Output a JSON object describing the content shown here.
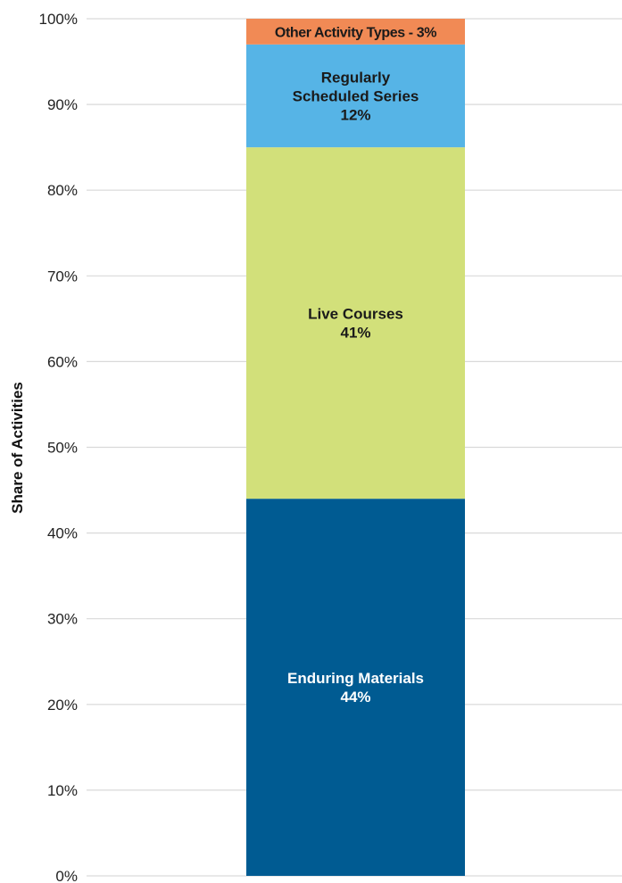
{
  "chart_data": {
    "type": "bar",
    "stacked": true,
    "ylabel": "Share of Activities",
    "ylim": [
      0,
      100
    ],
    "yticks": [
      0,
      10,
      20,
      30,
      40,
      50,
      60,
      70,
      80,
      90,
      100
    ],
    "ytick_labels": [
      "0%",
      "10%",
      "20%",
      "30%",
      "40%",
      "50%",
      "60%",
      "70%",
      "80%",
      "90%",
      "100%"
    ],
    "grid": true,
    "series": [
      {
        "name": "Enduring Materials",
        "value": 44,
        "value_label": "44%",
        "color": "#005b92",
        "text_color": "#ffffff",
        "label_lines": [
          "Enduring Materials",
          "44%"
        ]
      },
      {
        "name": "Live Courses",
        "value": 41,
        "value_label": "41%",
        "color": "#d2e07a",
        "text_color": "#1a1a1a",
        "label_lines": [
          "Live Courses",
          "41%"
        ]
      },
      {
        "name": "Regularly Scheduled Series",
        "value": 12,
        "value_label": "12%",
        "color": "#56b4e6",
        "text_color": "#1a1a1a",
        "label_lines": [
          "Regularly",
          "Scheduled Series",
          "12%"
        ]
      },
      {
        "name": "Other Activity Types",
        "value": 3,
        "value_label": "3%",
        "color": "#f18a55",
        "text_color": "#1a1a1a",
        "label_lines": [
          "Other Activity Types - 3%"
        ]
      }
    ]
  }
}
